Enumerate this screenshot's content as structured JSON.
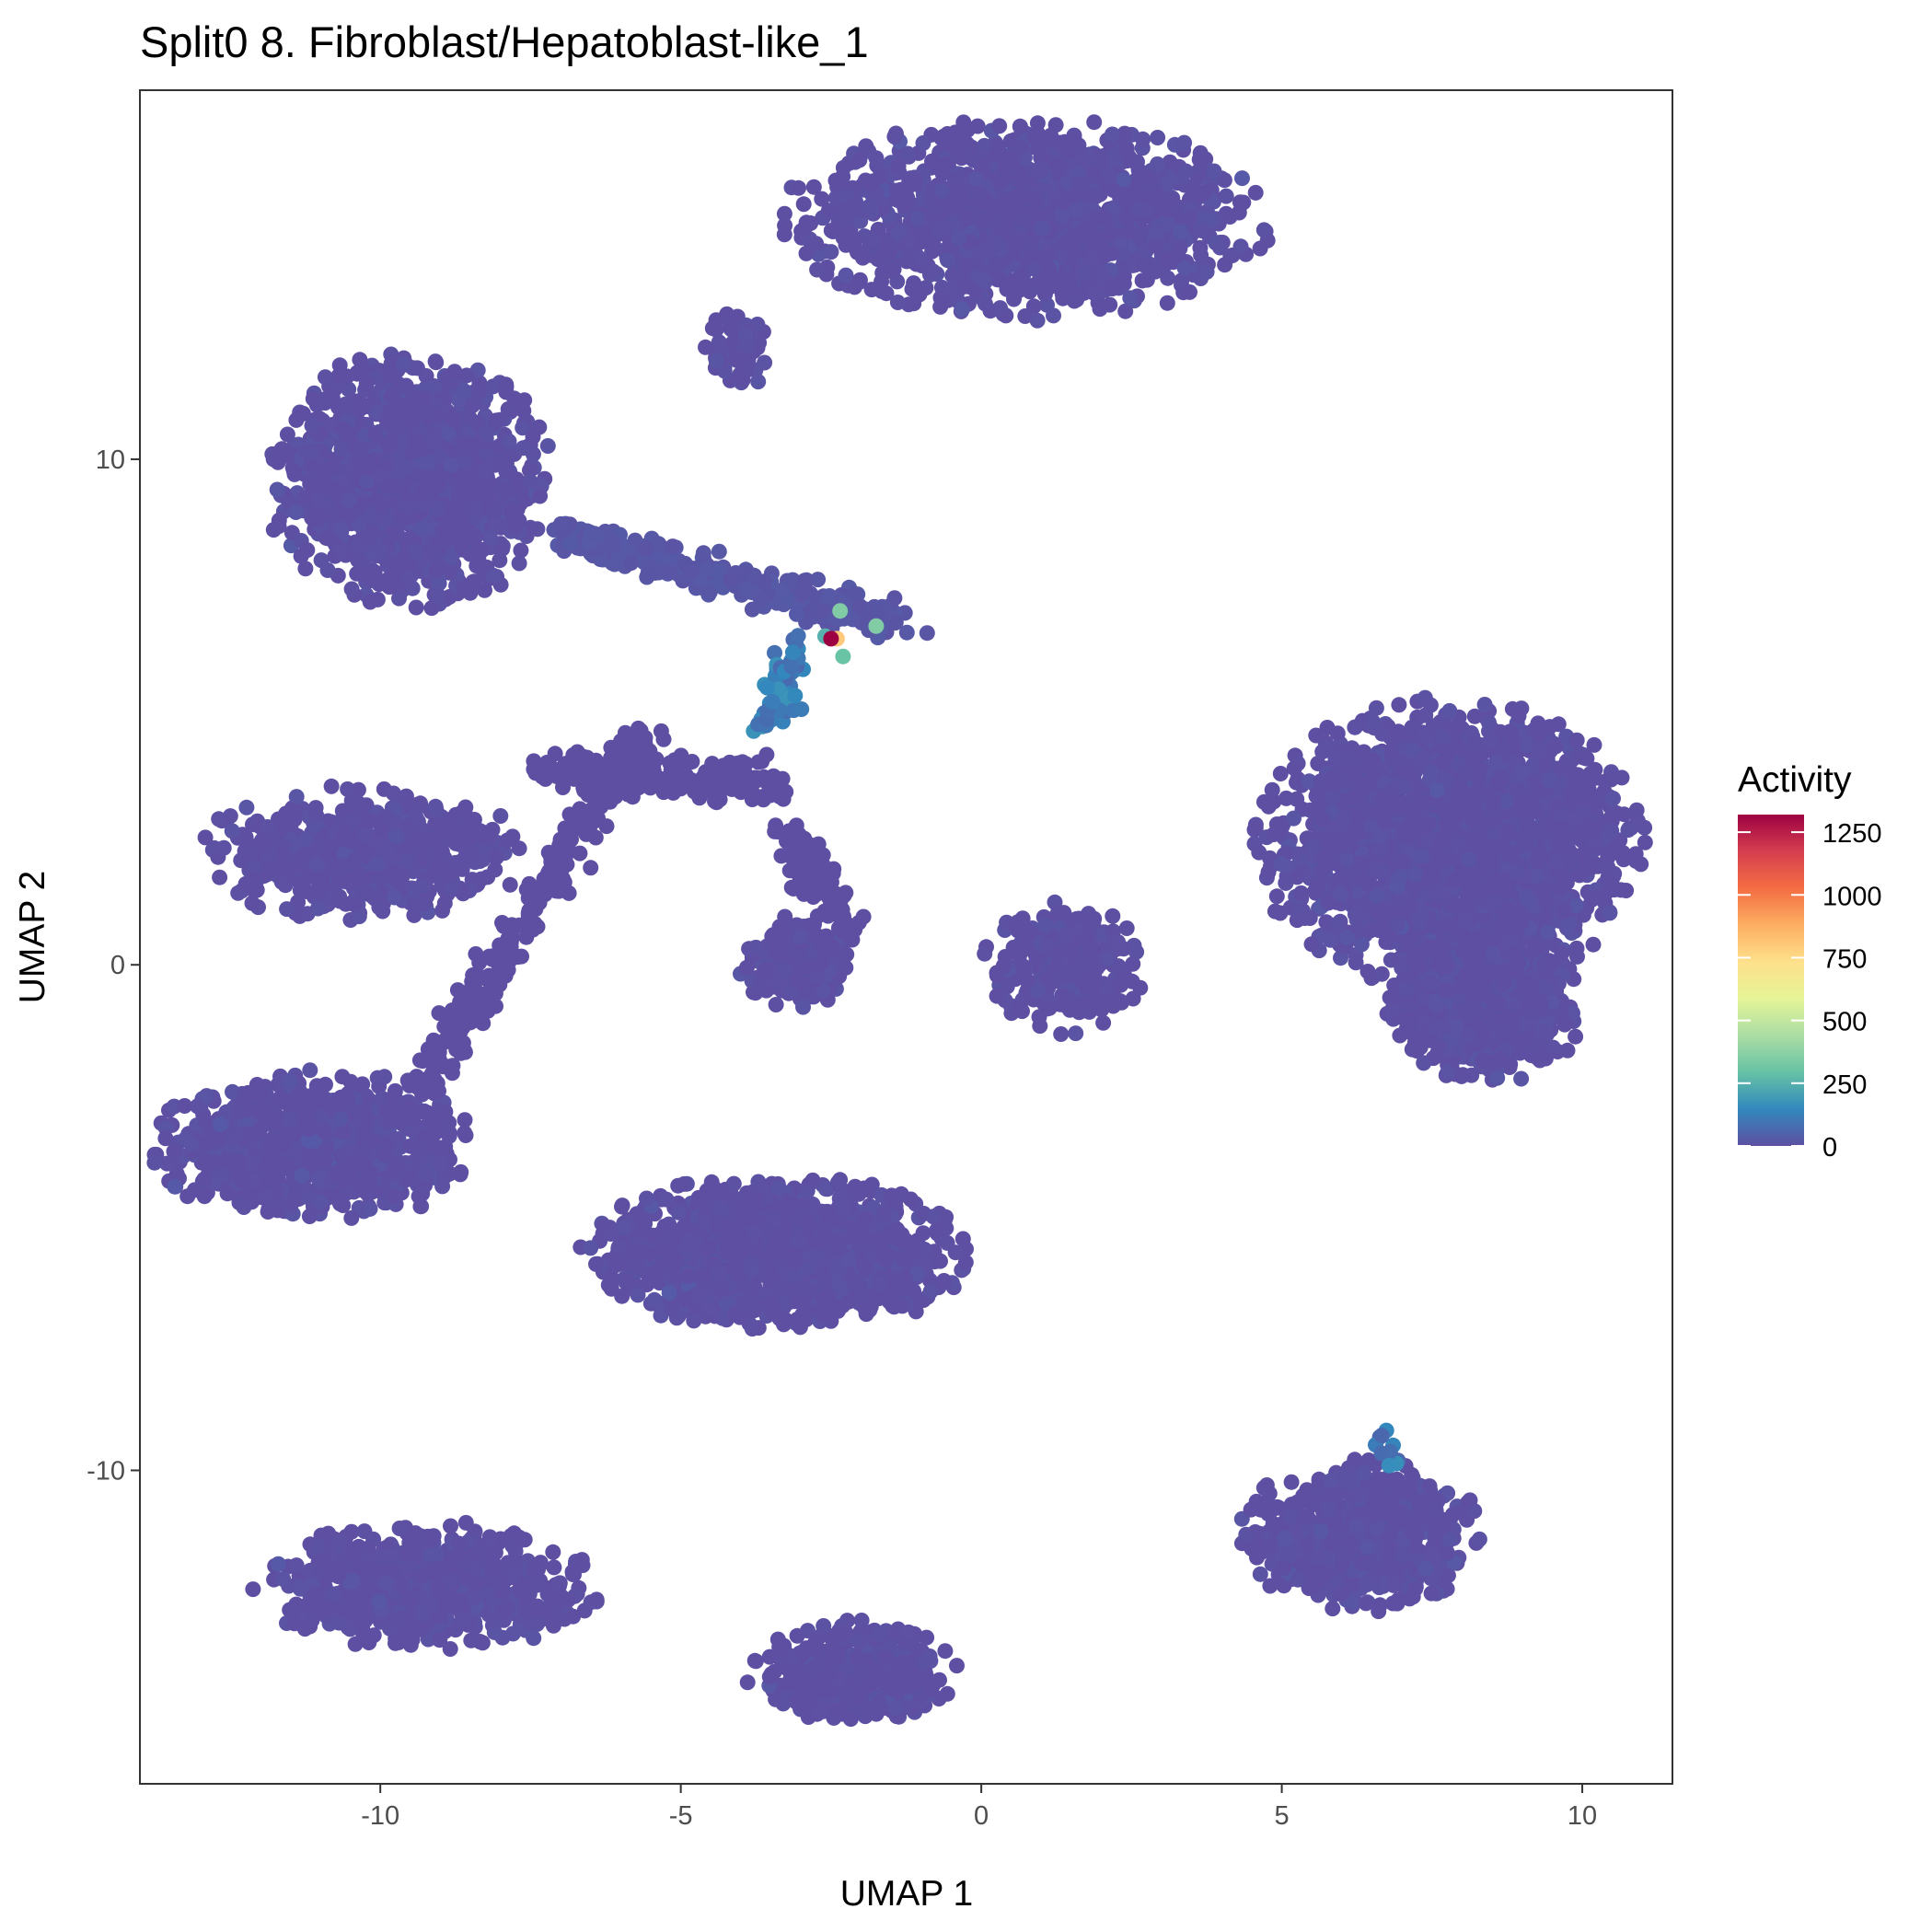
{
  "chart_data": {
    "type": "scatter",
    "title": "Split0 8. Fibroblast/Hepatoblast-like_1",
    "xlabel": "UMAP 1",
    "ylabel": "UMAP 2",
    "xlim": [
      -14,
      11.5
    ],
    "ylim": [
      -16.2,
      17.3
    ],
    "x_ticks": [
      -10,
      -5,
      0,
      5,
      10
    ],
    "y_ticks": [
      -10,
      0,
      10
    ],
    "x_tick_labels": [
      "-10",
      "-5",
      "0",
      "5",
      "10"
    ],
    "y_tick_labels": [
      "-10",
      "0",
      "10"
    ],
    "grid": false,
    "legend": {
      "title": "Activity",
      "placement": "right",
      "range": [
        0,
        1320
      ],
      "ticks": [
        0,
        250,
        500,
        750,
        1000,
        1250
      ],
      "tick_labels": [
        "0",
        "250",
        "500",
        "750",
        "1000",
        "1250"
      ],
      "palette": [
        "#5E4FA2",
        "#3288BD",
        "#66C2A5",
        "#ABDDA4",
        "#E6F598",
        "#FEE08B",
        "#FDAE61",
        "#F46D43",
        "#D53E4F",
        "#9E0142"
      ]
    },
    "clusters": [
      {
        "cx": 0.8,
        "cy": 14.8,
        "sx": 2.4,
        "sy": 1.2,
        "n": 1400,
        "activity": 0
      },
      {
        "cx": -4.0,
        "cy": 12.2,
        "sx": 0.35,
        "sy": 0.5,
        "n": 60,
        "activity": 0
      },
      {
        "cx": -9.5,
        "cy": 9.6,
        "sx": 1.4,
        "sy": 1.5,
        "n": 1300,
        "activity": 0
      },
      {
        "cx": -10.3,
        "cy": 2.2,
        "sx": 1.6,
        "sy": 0.8,
        "n": 600,
        "activity": 0
      },
      {
        "cx": -11.1,
        "cy": -3.6,
        "sx": 1.6,
        "sy": 0.9,
        "n": 900,
        "activity": 0
      },
      {
        "cx": -3.4,
        "cy": -5.7,
        "sx": 1.9,
        "sy": 0.9,
        "n": 1300,
        "activity": 0
      },
      {
        "cx": -9.2,
        "cy": -12.3,
        "sx": 1.7,
        "sy": 0.75,
        "n": 700,
        "activity": 0
      },
      {
        "cx": -2.1,
        "cy": -14.0,
        "sx": 1.0,
        "sy": 0.6,
        "n": 450,
        "activity": 0
      },
      {
        "cx": 6.3,
        "cy": -11.3,
        "sx": 1.2,
        "sy": 0.9,
        "n": 700,
        "activity": 0
      },
      {
        "cx": 7.8,
        "cy": 2.4,
        "sx": 1.9,
        "sy": 1.7,
        "n": 2200,
        "activity": 0
      },
      {
        "cx": 8.4,
        "cy": -0.8,
        "sx": 1.0,
        "sy": 0.9,
        "n": 900,
        "activity": 0
      },
      {
        "cx": 1.4,
        "cy": 0.0,
        "sx": 0.8,
        "sy": 0.8,
        "n": 300,
        "activity": 0
      },
      {
        "cx": -3.1,
        "cy": 0.0,
        "sx": 0.55,
        "sy": 0.5,
        "n": 250,
        "activity": 0
      }
    ],
    "trajectories": [
      {
        "from": [
          -7.0,
          8.5
        ],
        "to": [
          -1.3,
          6.7
        ],
        "n": 350,
        "activity": 20
      },
      {
        "from": [
          -9.5,
          -2.7
        ],
        "to": [
          -5.6,
          4.6
        ],
        "n": 300,
        "activity": 0
      },
      {
        "from": [
          -7.3,
          3.8
        ],
        "to": [
          -3.4,
          3.6
        ],
        "n": 250,
        "activity": 0
      },
      {
        "from": [
          -3.2,
          2.6
        ],
        "to": [
          -2.3,
          0.7
        ],
        "n": 120,
        "activity": 0
      },
      {
        "from": [
          -3.2,
          6.3
        ],
        "to": [
          -3.6,
          4.6
        ],
        "n": 60,
        "activity": 120
      },
      {
        "from": [
          6.7,
          -9.4
        ],
        "to": [
          6.9,
          -9.7
        ],
        "n": 10,
        "activity": 110
      }
    ],
    "highlighted_points": [
      {
        "x": -2.35,
        "y": 7.0,
        "value": 350
      },
      {
        "x": -1.75,
        "y": 6.7,
        "value": 350
      },
      {
        "x": -2.3,
        "y": 6.1,
        "value": 300
      },
      {
        "x": -2.6,
        "y": 6.5,
        "value": 250
      },
      {
        "x": -2.4,
        "y": 6.45,
        "value": 800
      },
      {
        "x": -2.5,
        "y": 6.45,
        "value": 1320
      }
    ]
  }
}
